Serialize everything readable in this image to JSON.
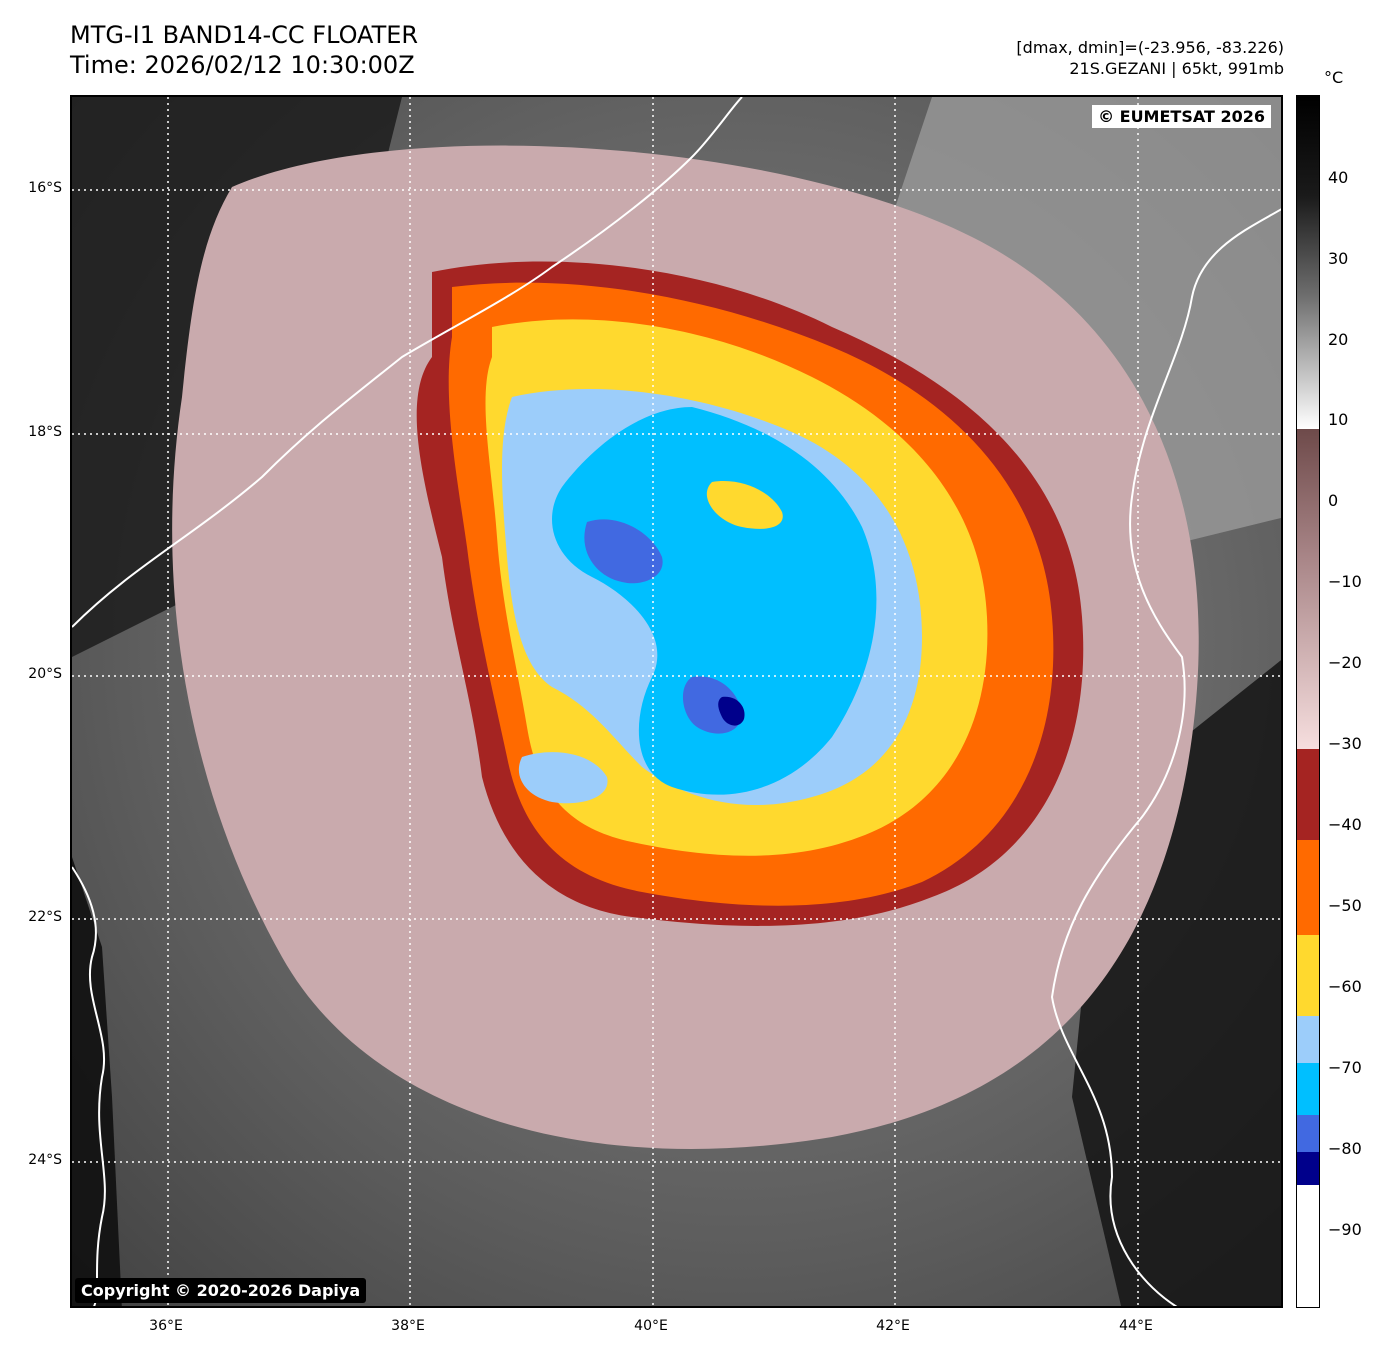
{
  "header": {
    "title_line1": "MTG-I1 BAND14-CC FLOATER",
    "title_line2": "Time: 2026/02/12 10:30:00Z",
    "dmax_dmin": "[dmax, dmin]=(-23.956, -83.226)",
    "storm_info": "21S.GEZANI | 65kt, 991mb"
  },
  "map": {
    "copyright_eumetsat": "© EUMETSAT 2026",
    "copyright_dapiya": "Copyright © 2020-2026 Dapiya",
    "lat_labels": [
      "16°S",
      "18°S",
      "20°S",
      "22°S",
      "24°S"
    ],
    "lon_labels": [
      "36°E",
      "38°E",
      "40°E",
      "42°E",
      "44°E"
    ]
  },
  "colorbar": {
    "unit": "°C",
    "tick_labels": [
      "40",
      "30",
      "20",
      "10",
      "0",
      "−10",
      "−20",
      "−30",
      "−40",
      "−50",
      "−60",
      "−70",
      "−80",
      "−90"
    ],
    "colors": {
      "dark_blue": "#00008b",
      "royal_blue": "#4169e1",
      "deep_sky_blue": "#00bfff",
      "light_sky_blue": "#9ccdfa",
      "gold": "#ffd92e",
      "dark_orange": "#ff6a00",
      "brown_red": "#a52422"
    }
  }
}
